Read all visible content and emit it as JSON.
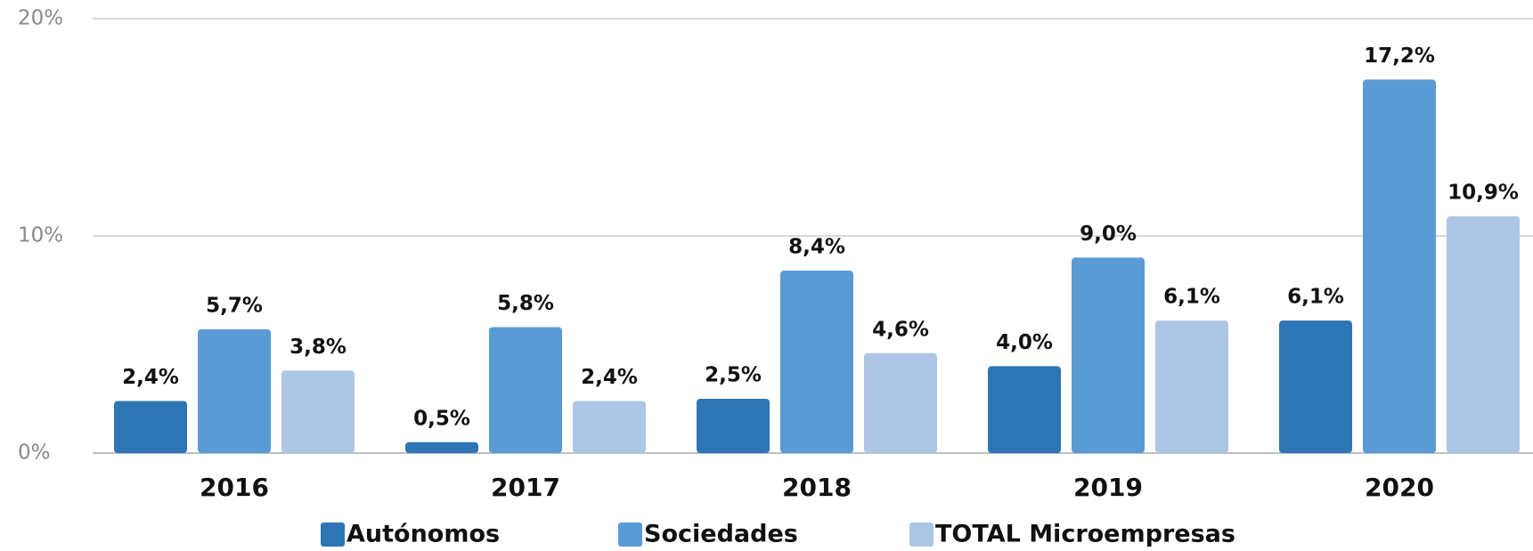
{
  "chart_data": {
    "type": "bar",
    "categories": [
      "2016",
      "2017",
      "2018",
      "2019",
      "2020"
    ],
    "series": [
      {
        "name": "Autónomos",
        "color": "#2e75b6",
        "values": [
          2.4,
          0.5,
          2.5,
          4.0,
          6.1
        ],
        "value_labels": [
          "2,4%",
          "0,5%",
          "2,5%",
          "4,0%",
          "6,1%"
        ]
      },
      {
        "name": "Sociedades",
        "color": "#5b9bd5",
        "values": [
          5.7,
          5.8,
          8.4,
          9.0,
          17.2
        ],
        "value_labels": [
          "5,7%",
          "5,8%",
          "8,4%",
          "9,0%",
          "17,2%"
        ]
      },
      {
        "name": "TOTAL Microempresas",
        "color": "#adc6e5",
        "values": [
          3.8,
          2.4,
          4.6,
          6.1,
          10.9
        ],
        "value_labels": [
          "3,8%",
          "2,4%",
          "4,6%",
          "6,1%",
          "10,9%"
        ]
      }
    ],
    "ylim": [
      0,
      20
    ],
    "yticks": [
      {
        "value": 0,
        "label": "0%"
      },
      {
        "value": 10,
        "label": "10%"
      },
      {
        "value": 20,
        "label": "20%"
      }
    ],
    "grid": true,
    "legend": "bottom"
  }
}
